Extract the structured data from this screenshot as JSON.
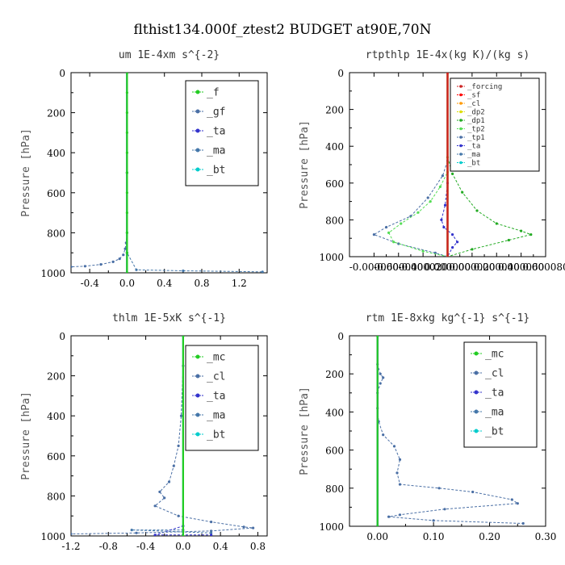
{
  "figure": {
    "title": "flthist134.000f_ztest2  BUDGET at90E,70N"
  },
  "chart_data": [
    {
      "type": "line",
      "title": "um  1E-4xm s^{-2}",
      "ylabel": "Pressure [hPa]",
      "xlim": [
        -0.6,
        1.5
      ],
      "ylim": [
        1000,
        0
      ],
      "xticks": [
        "-0.4",
        "0.0",
        "0.4",
        "0.8",
        "1.2"
      ],
      "xtick_values": [
        -0.4,
        0.0,
        0.4,
        0.8,
        1.2
      ],
      "yticks": [
        "0",
        "200",
        "400",
        "600",
        "800",
        "1000"
      ],
      "ytick_values": [
        0,
        200,
        400,
        600,
        800,
        1000
      ],
      "legend_size": "large",
      "series": [
        {
          "name": "_f",
          "color": "#22cc22",
          "points": [
            [
              0,
              0
            ],
            [
              0,
              100
            ],
            [
              0,
              200
            ],
            [
              0,
              300
            ],
            [
              0,
              400
            ],
            [
              0,
              500
            ],
            [
              0,
              600
            ],
            [
              0,
              700
            ],
            [
              0,
              800
            ],
            [
              0,
              900
            ],
            [
              0,
              1000
            ]
          ]
        },
        {
          "name": "_gf",
          "color": "#4a6fa5",
          "points": [
            [
              0,
              0
            ],
            [
              0,
              500
            ],
            [
              0,
              800
            ],
            [
              -0.01,
              850
            ],
            [
              -0.02,
              880
            ],
            [
              -0.04,
              910
            ],
            [
              -0.08,
              930
            ],
            [
              -0.15,
              945
            ],
            [
              -0.28,
              958
            ],
            [
              -0.45,
              967
            ],
            [
              -0.6,
              970
            ]
          ]
        },
        {
          "name": "_ta",
          "color": "#3333cc",
          "points": [
            [
              0,
              0
            ],
            [
              0,
              500
            ],
            [
              0,
              900
            ],
            [
              0,
              1000
            ]
          ]
        },
        {
          "name": "_ma",
          "color": "#4477aa",
          "points": [
            [
              0,
              0
            ],
            [
              0,
              900
            ],
            [
              0.1,
              985
            ],
            [
              0.6,
              990
            ],
            [
              1.45,
              995
            ]
          ]
        },
        {
          "name": "_bt",
          "color": "#00cccc",
          "points": [
            [
              0,
              0
            ],
            [
              0,
              1000
            ]
          ]
        }
      ]
    },
    {
      "type": "line",
      "title": "rtpthlp  1E-4x(kg K)/(kg s)",
      "ylabel": "Pressure [hPa]",
      "xlim": [
        -8e-05,
        8e-05
      ],
      "ylim": [
        1000,
        0
      ],
      "xticks": [
        "-0.000060",
        "-0.000040",
        "-0.000020",
        "0.000000",
        "0.000020",
        "0.000040",
        "0.000060",
        "0.000080"
      ],
      "xtick_values": [
        -6e-05,
        -4e-05,
        -2e-05,
        0.0,
        2e-05,
        4e-05,
        6e-05,
        8e-05
      ],
      "yticks": [
        "0",
        "200",
        "400",
        "600",
        "800",
        "1000"
      ],
      "ytick_values": [
        0,
        200,
        400,
        600,
        800,
        1000
      ],
      "legend_size": "small",
      "series": [
        {
          "name": "_forcing",
          "color": "#cc2222",
          "points": [
            [
              0,
              0
            ],
            [
              0,
              1000
            ]
          ]
        },
        {
          "name": "_sf",
          "color": "#ff0000",
          "points": [
            [
              0,
              0
            ],
            [
              0,
              1000
            ]
          ]
        },
        {
          "name": "_cl",
          "color": "#ff9900",
          "points": [
            [
              0,
              0
            ],
            [
              0,
              1000
            ]
          ]
        },
        {
          "name": "_dp2",
          "color": "#dddd00",
          "points": [
            [
              0,
              0
            ],
            [
              0,
              1000
            ]
          ]
        },
        {
          "name": "_dp1",
          "color": "#22aa22",
          "points": [
            [
              0,
              0
            ],
            [
              0,
              460
            ],
            [
              4e-06,
              550
            ],
            [
              1.2e-05,
              650
            ],
            [
              2.4e-05,
              750
            ],
            [
              4e-05,
              820
            ],
            [
              6e-05,
              860
            ],
            [
              6.8e-05,
              880
            ],
            [
              5e-05,
              910
            ],
            [
              2e-05,
              960
            ],
            [
              0,
              1000
            ]
          ]
        },
        {
          "name": "_tp2",
          "color": "#55dd55",
          "points": [
            [
              0,
              0
            ],
            [
              0,
              540
            ],
            [
              -6e-06,
              620
            ],
            [
              -1.4e-05,
              700
            ],
            [
              -2.4e-05,
              760
            ],
            [
              -3.8e-05,
              820
            ],
            [
              -4.8e-05,
              870
            ],
            [
              -4.4e-05,
              920
            ],
            [
              -2e-05,
              970
            ],
            [
              0,
              1000
            ]
          ]
        },
        {
          "name": "_tp1",
          "color": "#4a6fa5",
          "points": [
            [
              0,
              0
            ],
            [
              0,
              480
            ],
            [
              -4e-06,
              560
            ],
            [
              -1.6e-05,
              680
            ],
            [
              -3e-05,
              780
            ],
            [
              -5e-05,
              840
            ],
            [
              -6e-05,
              880
            ],
            [
              -4e-05,
              930
            ],
            [
              -1e-05,
              980
            ],
            [
              0,
              1000
            ]
          ]
        },
        {
          "name": "_ta",
          "color": "#3333cc",
          "points": [
            [
              0,
              0
            ],
            [
              0,
              600
            ],
            [
              -2e-06,
              720
            ],
            [
              -5e-06,
              800
            ],
            [
              -3e-06,
              840
            ],
            [
              4e-06,
              880
            ],
            [
              8e-06,
              920
            ],
            [
              4e-06,
              950
            ],
            [
              0,
              1000
            ]
          ]
        },
        {
          "name": "_ma",
          "color": "#4477aa",
          "points": [
            [
              0,
              0
            ],
            [
              0,
              1000
            ]
          ]
        },
        {
          "name": "_bt",
          "color": "#00cccc",
          "points": [
            [
              0,
              0
            ],
            [
              0,
              1000
            ]
          ]
        }
      ]
    },
    {
      "type": "line",
      "title": "thlm  1E-5xK s^{-1}",
      "ylabel": "Pressure [hPa]",
      "xlim": [
        -1.2,
        0.9
      ],
      "ylim": [
        1000,
        0
      ],
      "xticks": [
        "-1.2",
        "-0.8",
        "-0.4",
        "0.0",
        "0.4",
        "0.8"
      ],
      "xtick_values": [
        -1.2,
        -0.8,
        -0.4,
        0.0,
        0.4,
        0.8
      ],
      "yticks": [
        "0",
        "200",
        "400",
        "600",
        "800",
        "1000"
      ],
      "ytick_values": [
        0,
        200,
        400,
        600,
        800,
        1000
      ],
      "legend_size": "large",
      "series": [
        {
          "name": "_mc",
          "color": "#22cc22",
          "points": [
            [
              0,
              0
            ],
            [
              0,
              1000
            ]
          ]
        },
        {
          "name": "_cl",
          "color": "#4a6fa5",
          "points": [
            [
              0,
              0
            ],
            [
              0,
              150
            ],
            [
              -0.02,
              400
            ],
            [
              -0.05,
              550
            ],
            [
              -0.1,
              650
            ],
            [
              -0.15,
              730
            ],
            [
              -0.25,
              780
            ],
            [
              -0.2,
              810
            ],
            [
              -0.3,
              850
            ],
            [
              -0.05,
              900
            ],
            [
              0.3,
              930
            ],
            [
              0.65,
              955
            ],
            [
              0.75,
              960
            ],
            [
              0.3,
              975
            ],
            [
              -0.5,
              985
            ],
            [
              -1.2,
              990
            ]
          ]
        },
        {
          "name": "_ta",
          "color": "#3333cc",
          "points": [
            [
              0,
              0
            ],
            [
              0,
              950
            ],
            [
              -0.3,
              995
            ],
            [
              0.3,
              995
            ]
          ]
        },
        {
          "name": "_ma",
          "color": "#4477aa",
          "points": [
            [
              0,
              0
            ],
            [
              0,
              970
            ],
            [
              -0.55,
              970
            ],
            [
              0.3,
              985
            ]
          ]
        },
        {
          "name": "_bt",
          "color": "#00cccc",
          "points": [
            [
              0,
              0
            ],
            [
              0,
              1000
            ]
          ]
        }
      ]
    },
    {
      "type": "line",
      "title": "rtm  1E-8xkg kg^{-1} s^{-1}",
      "ylabel": "Pressure [hPa]",
      "xlim": [
        -0.05,
        0.3
      ],
      "ylim": [
        1000,
        0
      ],
      "xticks": [
        "0.00",
        "0.10",
        "0.20",
        "0.30"
      ],
      "xtick_values": [
        0.0,
        0.1,
        0.2,
        0.3
      ],
      "yticks": [
        "200",
        "400",
        "600",
        "800",
        "1000"
      ],
      "ytick_values": [
        200,
        400,
        600,
        800,
        1000
      ],
      "extra_yticks": [
        "0"
      ],
      "legend_size": "large",
      "series": [
        {
          "name": "_mc",
          "color": "#22cc22",
          "points": [
            [
              0,
              0
            ],
            [
              0,
              1000
            ]
          ]
        },
        {
          "name": "_cl",
          "color": "#4a6fa5",
          "points": [
            [
              0,
              0
            ],
            [
              0,
              150
            ],
            [
              0.005,
              200
            ],
            [
              0.01,
              220
            ],
            [
              0.005,
              250
            ],
            [
              0,
              300
            ],
            [
              0,
              380
            ],
            [
              0.002,
              450
            ],
            [
              0.01,
              520
            ],
            [
              0.03,
              580
            ],
            [
              0.04,
              650
            ],
            [
              0.035,
              720
            ],
            [
              0.04,
              780
            ],
            [
              0.11,
              800
            ],
            [
              0.17,
              820
            ],
            [
              0.24,
              860
            ],
            [
              0.25,
              880
            ],
            [
              0.12,
              910
            ],
            [
              0.04,
              940
            ],
            [
              0.02,
              950
            ],
            [
              0.1,
              970
            ],
            [
              0.26,
              985
            ]
          ]
        },
        {
          "name": "_ta",
          "color": "#3333cc",
          "points": [
            [
              0,
              0
            ],
            [
              0,
              1000
            ]
          ]
        },
        {
          "name": "_ma",
          "color": "#4477aa",
          "points": [
            [
              0,
              0
            ],
            [
              0,
              1000
            ]
          ]
        },
        {
          "name": "_bt",
          "color": "#00cccc",
          "points": [
            [
              0,
              0
            ],
            [
              0,
              1000
            ]
          ]
        }
      ]
    }
  ]
}
